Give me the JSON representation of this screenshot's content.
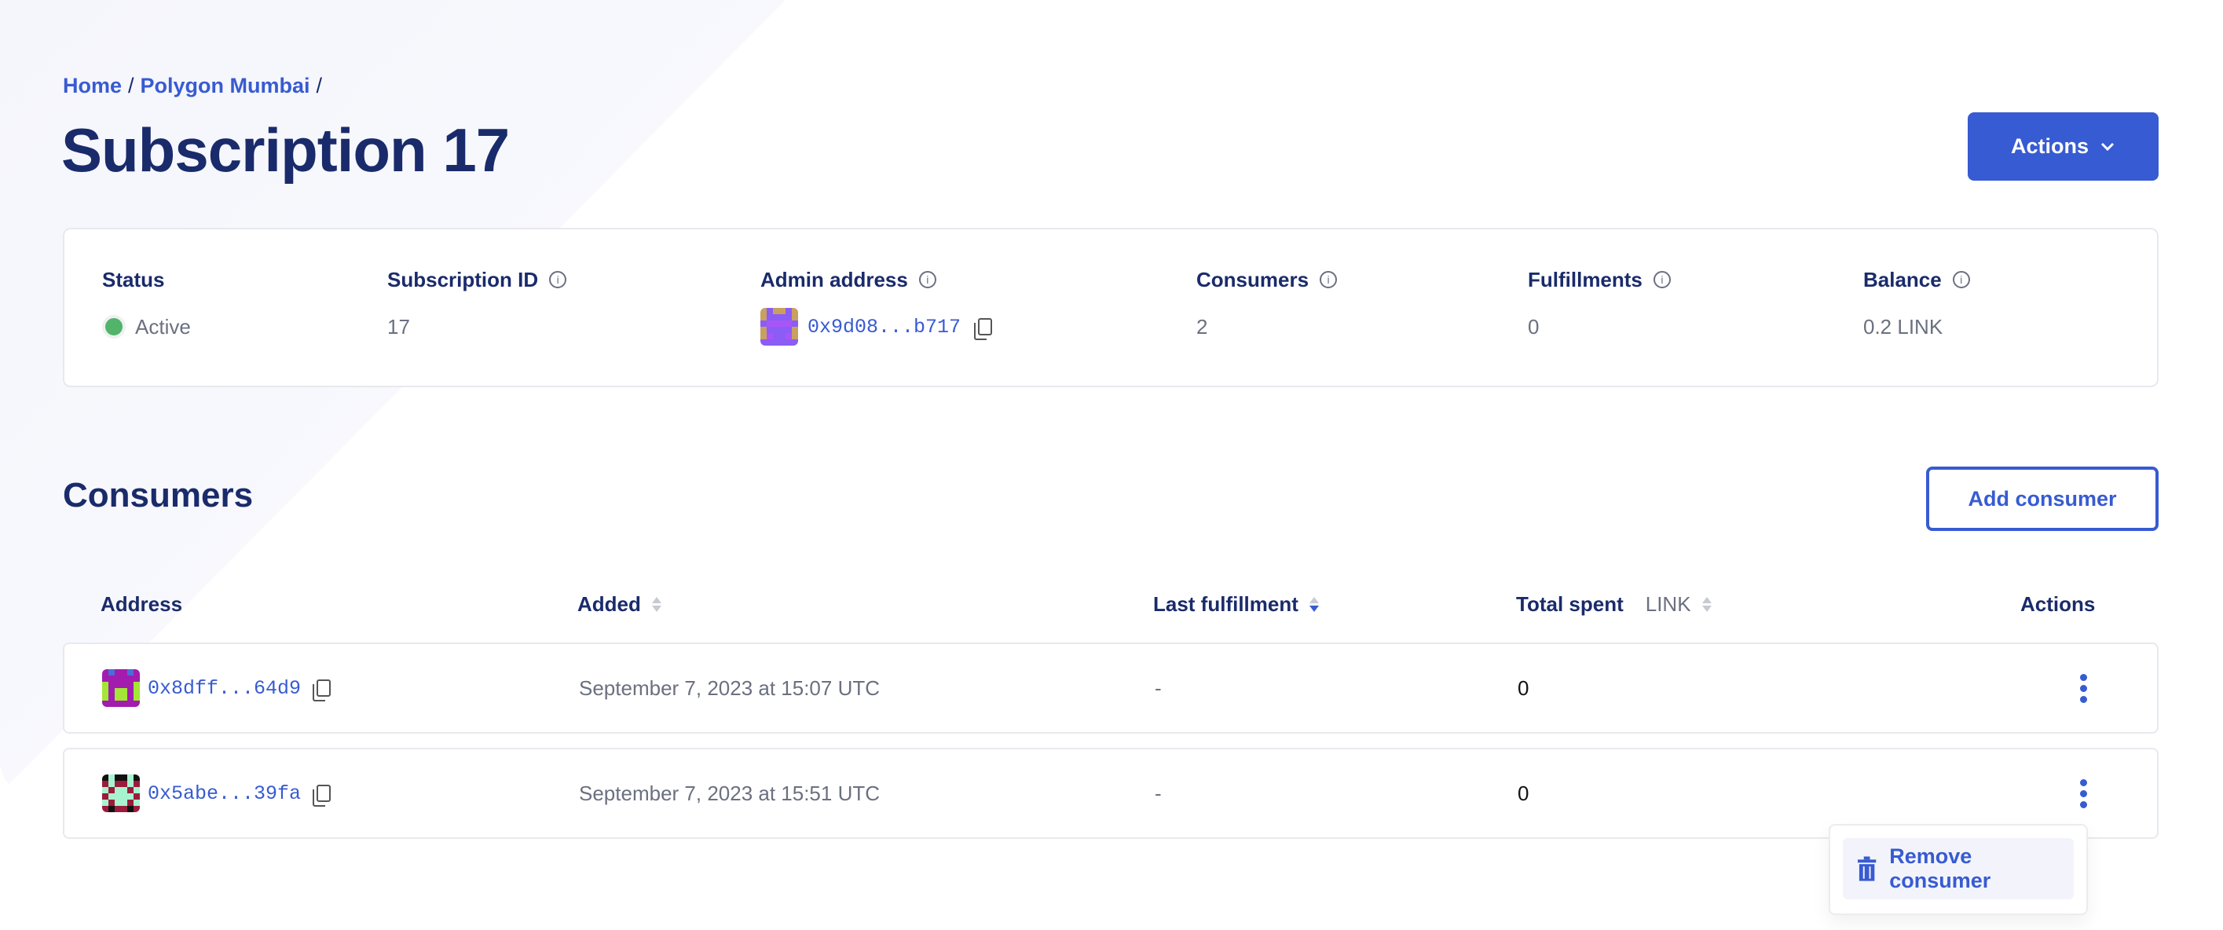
{
  "breadcrumb": [
    {
      "label": "Home"
    },
    {
      "label": "Polygon Mumbai"
    }
  ],
  "breadcrumb_sep": "/",
  "title": "Subscription 17",
  "actions_button": "Actions",
  "summary": {
    "status": {
      "label": "Status",
      "value": "Active",
      "color": "#52b36b"
    },
    "subscription_id": {
      "label": "Subscription ID",
      "value": "17"
    },
    "admin_address": {
      "label": "Admin address",
      "value": "0x9d08...b717"
    },
    "consumers": {
      "label": "Consumers",
      "value": "2"
    },
    "fulfillments": {
      "label": "Fulfillments",
      "value": "0"
    },
    "balance": {
      "label": "Balance",
      "value": "0.2 LINK"
    }
  },
  "consumers_section": {
    "heading": "Consumers",
    "add_button": "Add consumer",
    "columns": {
      "address": "Address",
      "added": "Added",
      "last_fulfillment": "Last fulfillment",
      "total_spent": "Total spent",
      "total_spent_unit": "LINK",
      "actions": "Actions"
    },
    "sorted_by": "Last fulfillment (descending)",
    "rows": [
      {
        "address": "0x8dff...64d9",
        "added": "September 7, 2023 at 15:07 UTC",
        "last_fulfillment": "-",
        "total_spent": "0"
      },
      {
        "address": "0x5abe...39fa",
        "added": "September 7, 2023 at 15:51 UTC",
        "last_fulfillment": "-",
        "total_spent": "0"
      }
    ],
    "row_menu": {
      "remove": "Remove consumer"
    }
  },
  "colors": {
    "accent": "#375bd2",
    "heading": "#1a2b6b",
    "muted": "#6b7080"
  }
}
